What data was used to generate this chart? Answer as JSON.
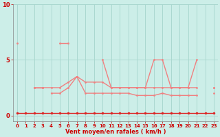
{
  "background_color": "#cceee8",
  "grid_color": "#aad8d0",
  "line_color": "#f08080",
  "dot_color": "#dd2222",
  "xlabel": "Vent moyen/en rafales ( km/h )",
  "xlabel_color": "#cc0000",
  "tick_color": "#cc0000",
  "ylim": [
    -0.5,
    10
  ],
  "xlim": [
    -0.5,
    23.5
  ],
  "yticks": [
    0,
    5,
    10
  ],
  "xticks": [
    0,
    1,
    2,
    3,
    4,
    5,
    6,
    7,
    8,
    9,
    10,
    11,
    12,
    13,
    14,
    15,
    16,
    17,
    18,
    19,
    20,
    21,
    22,
    23
  ],
  "x": [
    0,
    1,
    2,
    3,
    4,
    5,
    6,
    7,
    8,
    9,
    10,
    11,
    12,
    13,
    14,
    15,
    16,
    17,
    18,
    19,
    20,
    21,
    22,
    23
  ],
  "line1": [
    6.5,
    null,
    2.5,
    2.5,
    null,
    6.5,
    6.5,
    null,
    null,
    null,
    5.0,
    2.5,
    2.5,
    2.5,
    2.5,
    2.5,
    5.0,
    5.0,
    2.5,
    2.5,
    2.5,
    5.0,
    null,
    2.5
  ],
  "line2": [
    null,
    null,
    2.5,
    2.5,
    2.5,
    2.5,
    3.0,
    3.5,
    3.0,
    3.0,
    3.0,
    2.5,
    2.5,
    2.5,
    2.5,
    2.5,
    2.5,
    2.5,
    2.5,
    2.5,
    2.5,
    2.5,
    null,
    2.5
  ],
  "line3": [
    null,
    null,
    null,
    null,
    2.0,
    2.0,
    2.5,
    3.5,
    2.0,
    2.0,
    2.0,
    2.0,
    2.0,
    2.0,
    1.8,
    1.8,
    1.8,
    2.0,
    1.8,
    1.8,
    1.8,
    1.8,
    null,
    2.0
  ],
  "line4": [
    0.2,
    0.2,
    0.2,
    0.2,
    0.2,
    0.2,
    0.2,
    0.2,
    0.2,
    0.2,
    0.2,
    0.2,
    0.2,
    0.2,
    0.2,
    0.2,
    0.2,
    0.2,
    0.2,
    0.2,
    0.2,
    0.2,
    0.2,
    0.2
  ]
}
